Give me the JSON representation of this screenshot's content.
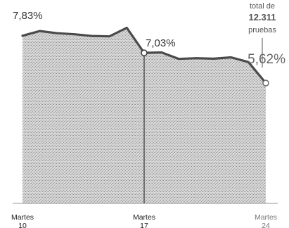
{
  "chart_data": {
    "type": "area",
    "x": [
      10,
      11,
      12,
      13,
      14,
      15,
      16,
      17,
      18,
      19,
      20,
      21,
      22,
      23,
      24
    ],
    "values": [
      7.83,
      8.05,
      7.95,
      7.9,
      7.82,
      7.8,
      8.2,
      7.03,
      7.05,
      6.75,
      6.78,
      6.76,
      6.82,
      6.6,
      5.62
    ],
    "ylim": [
      0,
      9.5
    ],
    "xlim": [
      10,
      24
    ],
    "tick_labels": [
      {
        "top": "Martes",
        "bottom": "10"
      },
      {
        "top": "Martes",
        "bottom": "17"
      },
      {
        "top": "Martes",
        "bottom": "24"
      }
    ],
    "data_labels": {
      "first": "7,83%",
      "middle": "7,03%",
      "last": "5,62%"
    },
    "note": {
      "line1": "total de",
      "line2": "12.311",
      "line3": "pruebas"
    },
    "colors": {
      "line": "#4a4a4a",
      "fill": "#d4d4d4",
      "stipple": "#8c8c8c"
    }
  }
}
